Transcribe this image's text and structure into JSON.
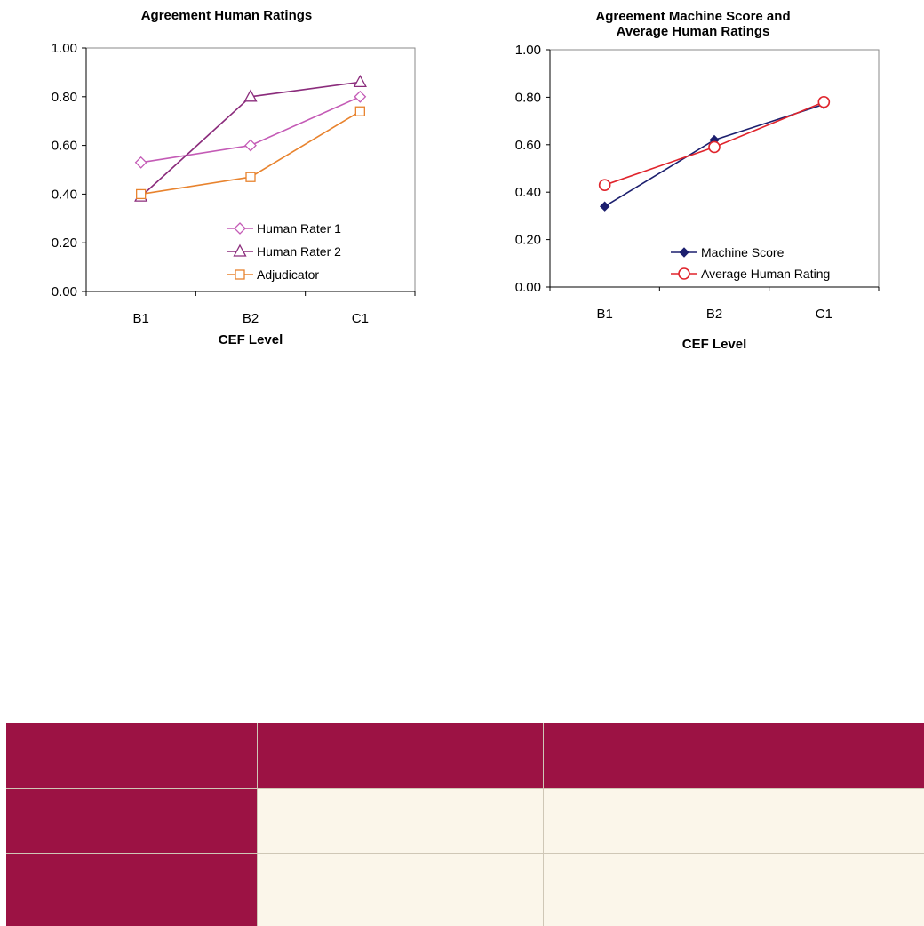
{
  "chart_data": [
    {
      "type": "line",
      "title": "Agreement Human Ratings",
      "xlabel": "CEF Level",
      "ylabel": "",
      "ylim": [
        0,
        1
      ],
      "yticks": [
        "0.00",
        "0.20",
        "0.40",
        "0.60",
        "0.80",
        "1.00"
      ],
      "categories": [
        "B1",
        "B2",
        "C1"
      ],
      "grid": false,
      "legend_position": "bottom-right",
      "series": [
        {
          "name": "Human Rater 1",
          "values": [
            0.53,
            0.6,
            0.8
          ],
          "color": "#c45bb6",
          "marker": "diamond-open"
        },
        {
          "name": "Human Rater 2",
          "values": [
            0.39,
            0.8,
            0.86
          ],
          "color": "#8b2c7c",
          "marker": "triangle-open"
        },
        {
          "name": "Adjudicator",
          "values": [
            0.4,
            0.47,
            0.74
          ],
          "color": "#e8832e",
          "marker": "square-open"
        }
      ]
    },
    {
      "type": "line",
      "title": "Agreement Machine Score and Average Human Ratings",
      "title_lines": [
        "Agreement Machine Score and",
        "Average Human Ratings"
      ],
      "xlabel": "CEF Level",
      "ylabel": "",
      "ylim": [
        0,
        1
      ],
      "yticks": [
        "0.00",
        "0.20",
        "0.40",
        "0.60",
        "0.80",
        "1.00"
      ],
      "categories": [
        "B1",
        "B2",
        "C1"
      ],
      "grid": false,
      "legend_position": "bottom-right",
      "series": [
        {
          "name": "Machine Score",
          "values": [
            0.34,
            0.62,
            0.77
          ],
          "color": "#1c1f6e",
          "marker": "diamond-filled"
        },
        {
          "name": "Average Human Rating",
          "values": [
            0.43,
            0.59,
            0.78
          ],
          "color": "#e0242c",
          "marker": "circle-open"
        }
      ]
    }
  ],
  "table": {
    "header_color": "#9c1244",
    "body_color": "#fbf6ea",
    "rows": 3,
    "columns": 3
  }
}
